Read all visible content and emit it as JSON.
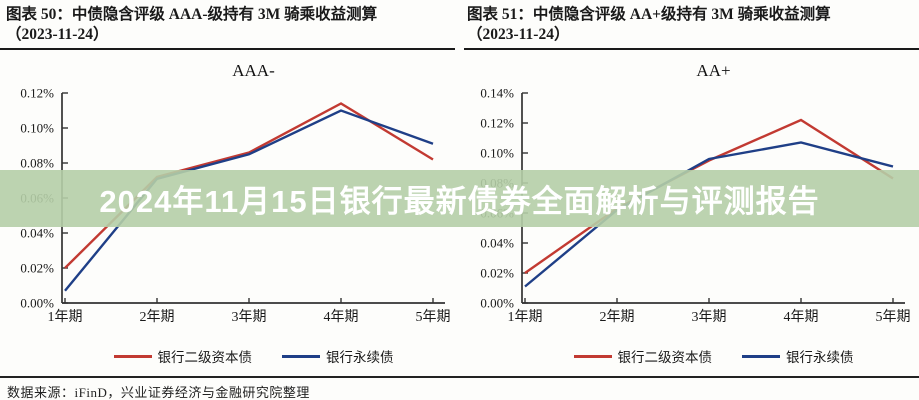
{
  "figures": [
    {
      "header_line1": "图表 50：中债隐含评级 AAA-级持有 3M 骑乘收益测算",
      "header_line2": "（2023-11-24）"
    },
    {
      "header_line1": "图表 51：中债隐含评级 AA+级持有 3M 骑乘收益测算",
      "header_line2": "（2023-11-24）"
    }
  ],
  "banner": {
    "text": "2024年11月15日银行最新债券全面解析与评测报告",
    "background_rgba": "rgba(181,206,167,0.9)",
    "text_color": "#ffffff"
  },
  "footer": {
    "source": "数据来源：iFinD，兴业证券经济与金融研究院整理"
  },
  "colors": {
    "tier2_bond_line": "#c23a32",
    "perpetual_bond_line": "#1f3f87",
    "axis": "#333333"
  },
  "chart_data": [
    {
      "type": "line",
      "title": "AAA-",
      "categories": [
        "1年期",
        "2年期",
        "3年期",
        "4年期",
        "5年期"
      ],
      "series": [
        {
          "name": "银行二级资本债",
          "color": "#c23a32",
          "values_pct": [
            0.02,
            0.072,
            0.086,
            0.114,
            0.082
          ]
        },
        {
          "name": "银行永续债",
          "color": "#1f3f87",
          "values_pct": [
            0.007,
            0.071,
            0.085,
            0.11,
            0.091
          ]
        }
      ],
      "ylabel_unit": "%",
      "ylim_pct": [
        0.0,
        0.12
      ],
      "ytick_labels": [
        "0.00%",
        "0.02%",
        "0.04%",
        "0.06%",
        "0.08%",
        "0.10%",
        "0.12%"
      ],
      "grid": false,
      "legend_position": "bottom"
    },
    {
      "type": "line",
      "title": "AA+",
      "categories": [
        "1年期",
        "2年期",
        "3年期",
        "4年期",
        "5年期"
      ],
      "series": [
        {
          "name": "银行二级资本债",
          "color": "#c23a32",
          "values_pct": [
            0.02,
            0.063,
            0.095,
            0.122,
            0.083
          ]
        },
        {
          "name": "银行永续债",
          "color": "#1f3f87",
          "values_pct": [
            0.011,
            0.062,
            0.096,
            0.107,
            0.091
          ]
        }
      ],
      "ylabel_unit": "%",
      "ylim_pct": [
        0.0,
        0.14
      ],
      "ytick_labels": [
        "0.00%",
        "0.02%",
        "0.04%",
        "0.06%",
        "0.08%",
        "0.10%",
        "0.12%",
        "0.14%"
      ],
      "grid": false,
      "legend_position": "bottom"
    }
  ]
}
